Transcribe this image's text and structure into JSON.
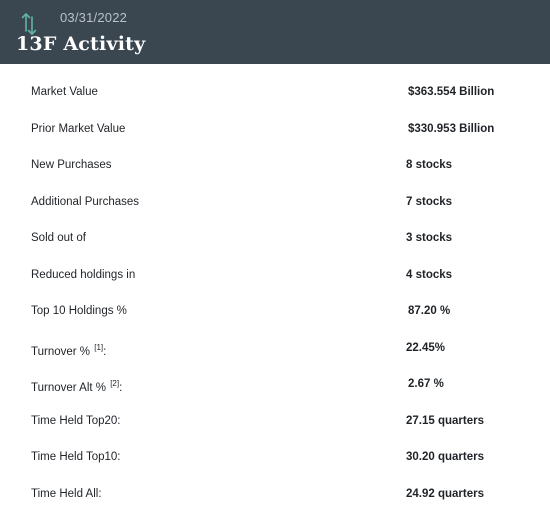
{
  "header": {
    "date": "03/31/2022",
    "title": "13F Activity",
    "icon": "sort-arrows-icon",
    "accent_color": "#5fb5a6",
    "background_color": "#3a4650"
  },
  "rows": [
    {
      "label": "Market Value",
      "sup": "",
      "suffix": "",
      "value": "$363.554 Billion"
    },
    {
      "label": "Prior Market Value",
      "sup": "",
      "suffix": "",
      "value": "$330.953 Billion"
    },
    {
      "label": "New Purchases",
      "sup": "",
      "suffix": "",
      "value": "8 stocks"
    },
    {
      "label": "Additional Purchases",
      "sup": "",
      "suffix": "",
      "value": "7 stocks"
    },
    {
      "label": "Sold out of",
      "sup": "",
      "suffix": "",
      "value": "3 stocks"
    },
    {
      "label": "Reduced holdings in",
      "sup": "",
      "suffix": "",
      "value": "4 stocks"
    },
    {
      "label": "Top 10 Holdings %",
      "sup": "",
      "suffix": "",
      "value": "87.20 %"
    },
    {
      "label": "Turnover %",
      "sup": "[1]",
      "suffix": ":",
      "value": "22.45%"
    },
    {
      "label": "Turnover Alt %",
      "sup": "[2]",
      "suffix": ":",
      "value": "2.67 %"
    },
    {
      "label": "Time Held Top20:",
      "sup": "",
      "suffix": "",
      "value": "27.15 quarters"
    },
    {
      "label": "Time Held Top10:",
      "sup": "",
      "suffix": "",
      "value": "30.20 quarters"
    },
    {
      "label": "Time Held All:",
      "sup": "",
      "suffix": "",
      "value": "24.92 quarters"
    }
  ]
}
